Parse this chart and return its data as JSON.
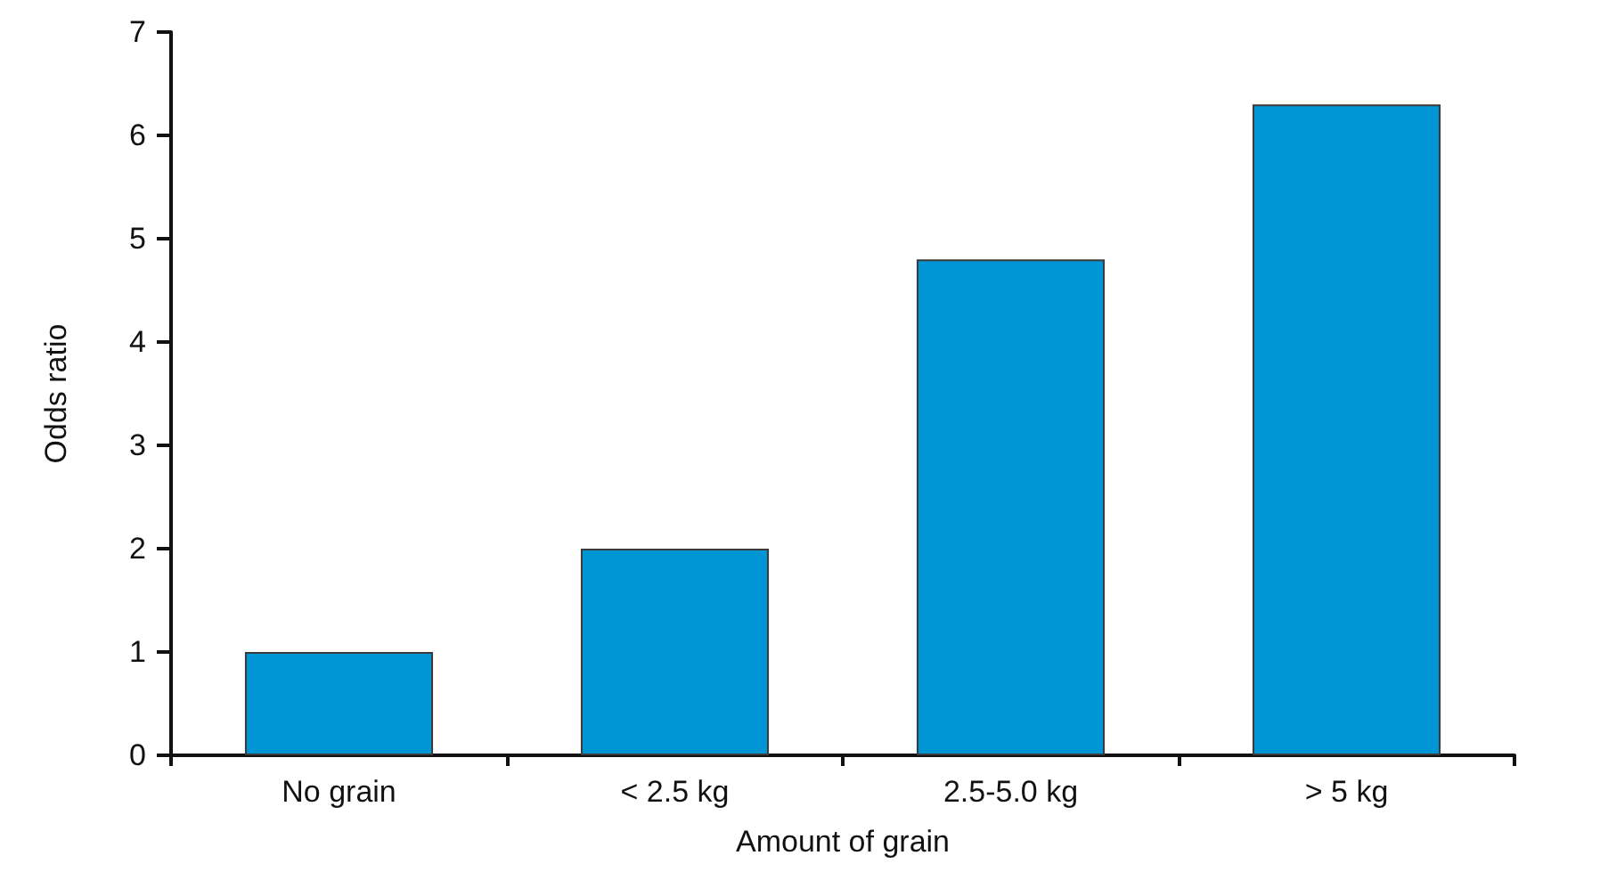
{
  "chart_data": {
    "type": "bar",
    "xlabel": "Amount of grain",
    "ylabel": "Odds ratio",
    "categories": [
      "No grain",
      "< 2.5 kg",
      "2.5-5.0 kg",
      "> 5 kg"
    ],
    "values": [
      1.0,
      2.0,
      4.8,
      6.3
    ],
    "color": "#0096d6",
    "ylim": [
      0,
      7
    ],
    "yticks": [
      0,
      1,
      2,
      3,
      4,
      5,
      6,
      7
    ],
    "grid": false
  }
}
